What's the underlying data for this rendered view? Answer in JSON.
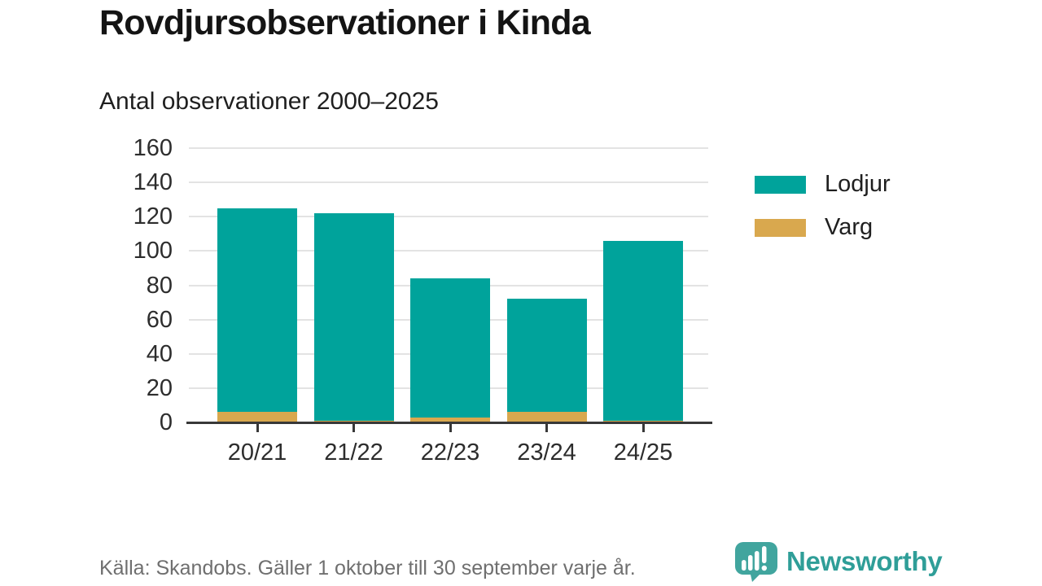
{
  "header": {
    "title": "Rovdjursobservationer i Kinda",
    "subtitle": "Antal observationer 2000–2025"
  },
  "chart_data": {
    "type": "bar",
    "stacked": true,
    "title": "Rovdjursobservationer i Kinda",
    "subtitle": "Antal observationer 2000–2025",
    "categories": [
      "20/21",
      "21/22",
      "22/23",
      "23/24",
      "24/25"
    ],
    "series": [
      {
        "name": "Lodjur",
        "color": "#00a39b",
        "values": [
          119,
          121,
          81,
          66,
          105
        ]
      },
      {
        "name": "Varg",
        "color": "#d9a84e",
        "values": [
          6,
          1,
          3,
          6,
          1
        ]
      }
    ],
    "stack_order_bottom_to_top": [
      "Varg",
      "Lodjur"
    ],
    "totals": [
      125,
      122,
      84,
      72,
      106
    ],
    "xlabel": "",
    "ylabel": "",
    "ylim": [
      0,
      160
    ],
    "yticks": [
      0,
      20,
      40,
      60,
      80,
      100,
      120,
      140,
      160
    ],
    "grid": true,
    "legend_position": "right"
  },
  "legend": {
    "items": [
      {
        "label": "Lodjur",
        "color": "#00a39b"
      },
      {
        "label": "Varg",
        "color": "#d9a84e"
      }
    ]
  },
  "footer": {
    "source": "Källa: Skandobs. Gäller 1 oktober till 30 september varje år.",
    "brand": "Newsworthy"
  },
  "colors": {
    "lodjur": "#00a39b",
    "varg": "#d9a84e",
    "axis": "#383838",
    "grid": "#e3e3e3",
    "text_dark": "#2d2d2d",
    "source_gray": "#6f6f6f",
    "brand_teal": "#2f9e98",
    "logo_teal": "#41a59e"
  }
}
